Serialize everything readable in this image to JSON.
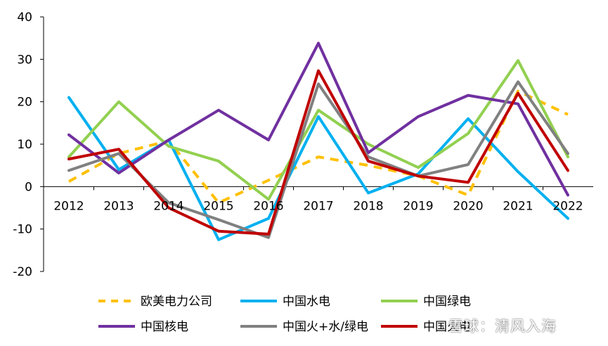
{
  "chart_data": {
    "type": "line",
    "title": "",
    "xlabel": "",
    "ylabel": "",
    "categories": [
      "2012",
      "2013",
      "2014",
      "2015",
      "2016",
      "2017",
      "2018",
      "2019",
      "2020",
      "2021",
      "2022"
    ],
    "ylim": [
      -20,
      40
    ],
    "yticks": [
      -20,
      -10,
      0,
      10,
      20,
      30,
      40
    ],
    "grid": false,
    "legend_position": "bottom",
    "series": [
      {
        "name": "欧美电力公司",
        "color": "#FFC000",
        "dashed": true,
        "values": [
          1.2,
          7.8,
          10.8,
          -3.8,
          1.5,
          7.0,
          5.0,
          2.5,
          -2.0,
          22.5,
          17.0
        ]
      },
      {
        "name": "中国水电",
        "color": "#00B0F0",
        "dashed": false,
        "values": [
          21.0,
          4.0,
          11.0,
          -12.5,
          -7.5,
          16.5,
          -1.5,
          3.0,
          16.0,
          3.5,
          -7.5
        ]
      },
      {
        "name": "中国绿电",
        "color": "#92D050",
        "dashed": false,
        "values": [
          7.0,
          20.0,
          9.5,
          6.0,
          -3.0,
          18.0,
          10.0,
          4.5,
          12.5,
          29.7,
          7.0
        ]
      },
      {
        "name": "中国核电",
        "color": "#7030A0",
        "dashed": false,
        "values": [
          12.2,
          3.2,
          11.0,
          18.0,
          11.0,
          33.8,
          8.0,
          16.5,
          21.5,
          19.5,
          -2.0
        ]
      },
      {
        "name": "中国火+水/绿电",
        "color": "#808080",
        "dashed": false,
        "values": [
          3.8,
          7.8,
          -3.8,
          -7.8,
          -12.0,
          24.2,
          7.0,
          2.5,
          5.2,
          24.7,
          7.8
        ]
      },
      {
        "name": "中国火电",
        "color": "#C00000",
        "dashed": false,
        "values": [
          6.5,
          8.8,
          -5.0,
          -10.5,
          -11.2,
          27.3,
          6.0,
          2.5,
          1.0,
          22.0,
          3.8
        ]
      }
    ]
  },
  "watermark": "雪球：清风入海"
}
